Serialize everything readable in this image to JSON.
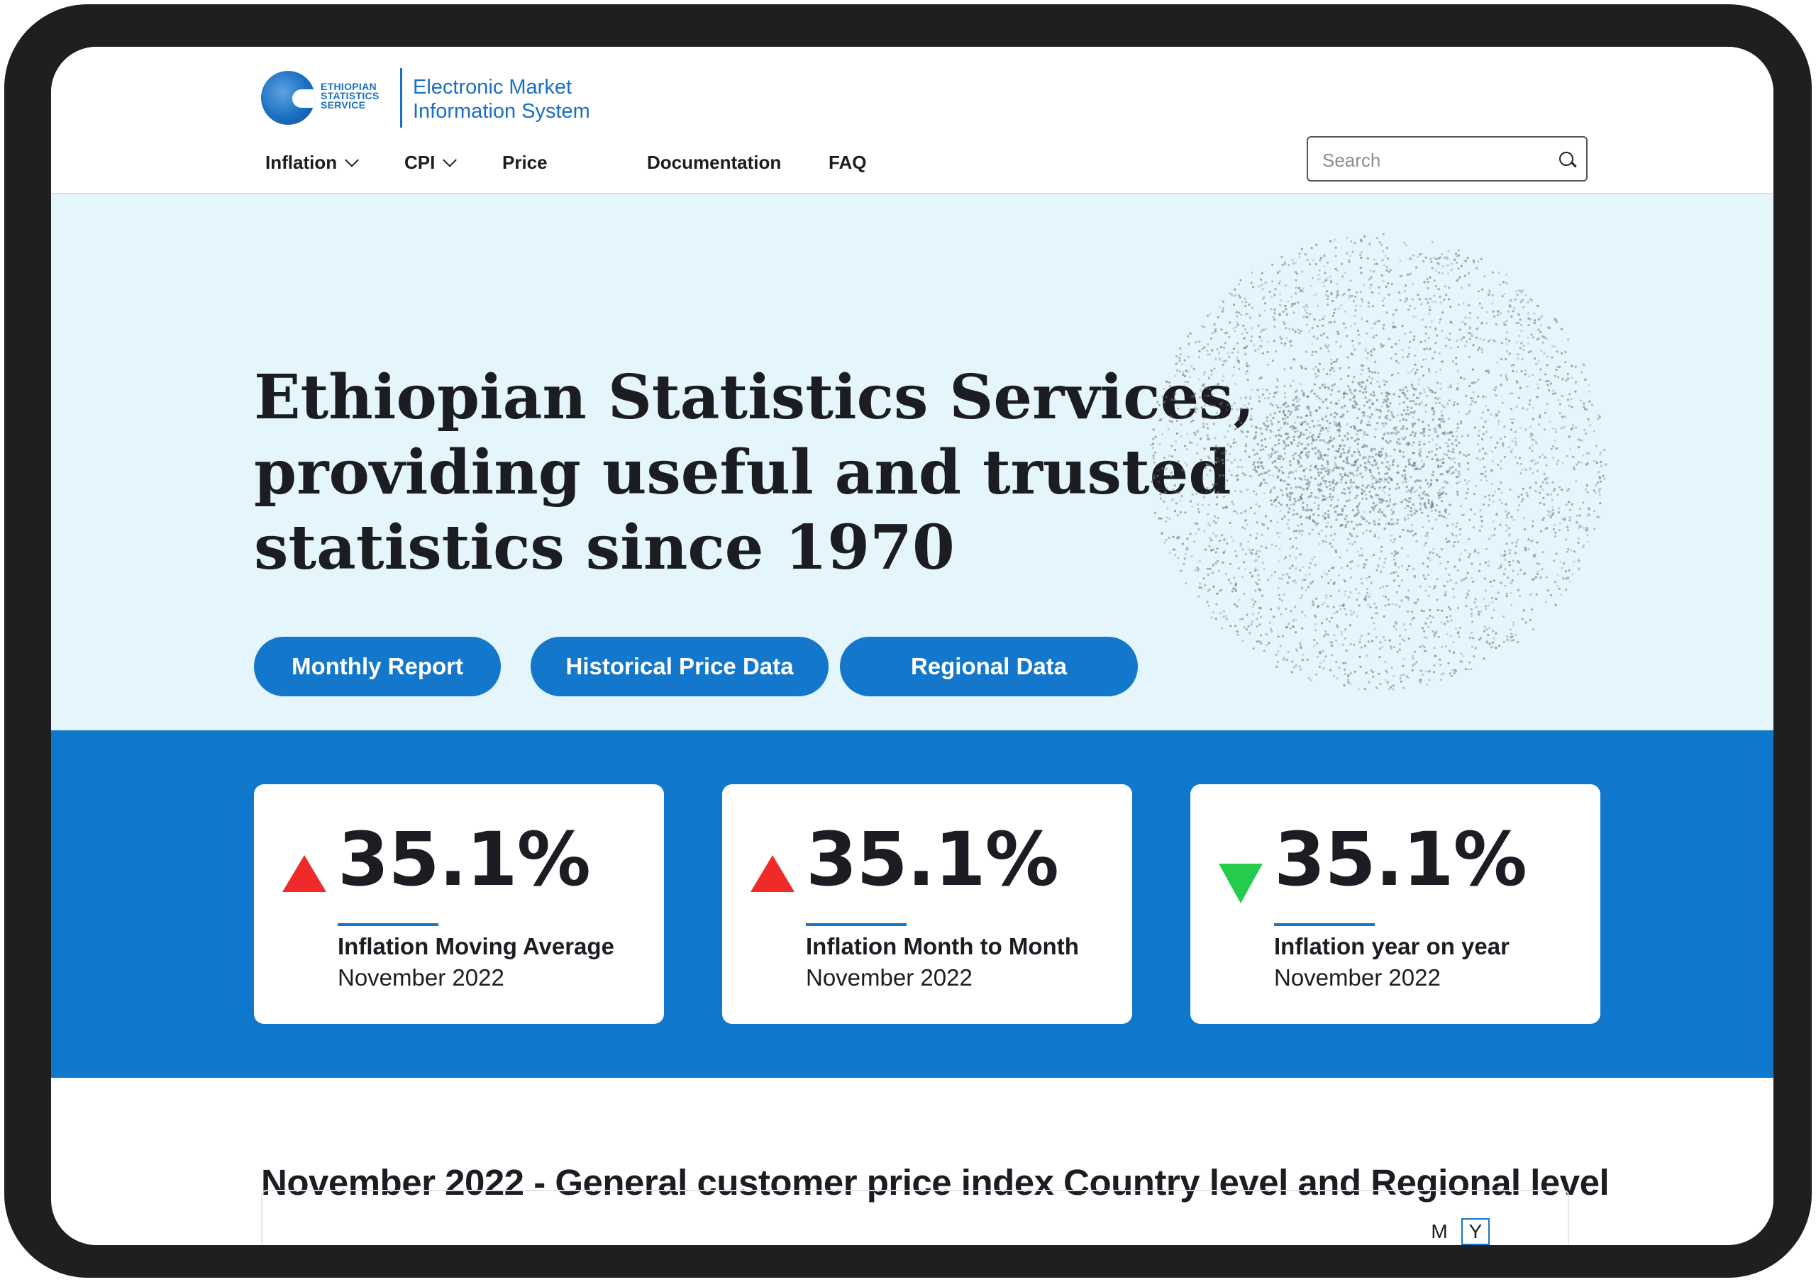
{
  "logo": {
    "org_lines": [
      "ETHIOPIAN",
      "STATISTICS",
      "SERVICE"
    ],
    "system_lines": [
      "Electronic Market",
      "Information System"
    ]
  },
  "nav": {
    "items": [
      {
        "label": "Inflation",
        "dropdown": true
      },
      {
        "label": "CPI",
        "dropdown": true
      },
      {
        "label": "Price",
        "dropdown": false
      },
      {
        "label": "Documentation",
        "dropdown": false
      },
      {
        "label": "FAQ",
        "dropdown": false
      }
    ]
  },
  "search": {
    "placeholder": "Search",
    "icon": "search-icon"
  },
  "hero": {
    "title_lines": [
      "Ethiopian Statistics Services,",
      "providing useful and trusted",
      "statistics since 1970"
    ],
    "buttons": [
      "Monthly Report",
      "Historical Price Data",
      "Regional Data"
    ]
  },
  "stats": [
    {
      "value": "35.1%",
      "trend": "up",
      "label": "Inflation Moving Average",
      "date": "November 2022"
    },
    {
      "value": "35.1%",
      "trend": "up",
      "label": "Inflation Month to Month",
      "date": "November 2022"
    },
    {
      "value": "35.1%",
      "trend": "down",
      "label": "Inflation year on year",
      "date": "November 2022"
    }
  ],
  "section": {
    "title": "November 2022 - General customer price index Country level and Regional level",
    "toggles": [
      {
        "label": "M",
        "active": false
      },
      {
        "label": "Y",
        "active": true
      }
    ]
  },
  "colors": {
    "brand_blue": "#1377cc",
    "hero_bg": "#e5f5fc",
    "trend_up": "#ee2a2a",
    "trend_down": "#25cc4c",
    "frame": "#1f1f1f"
  }
}
